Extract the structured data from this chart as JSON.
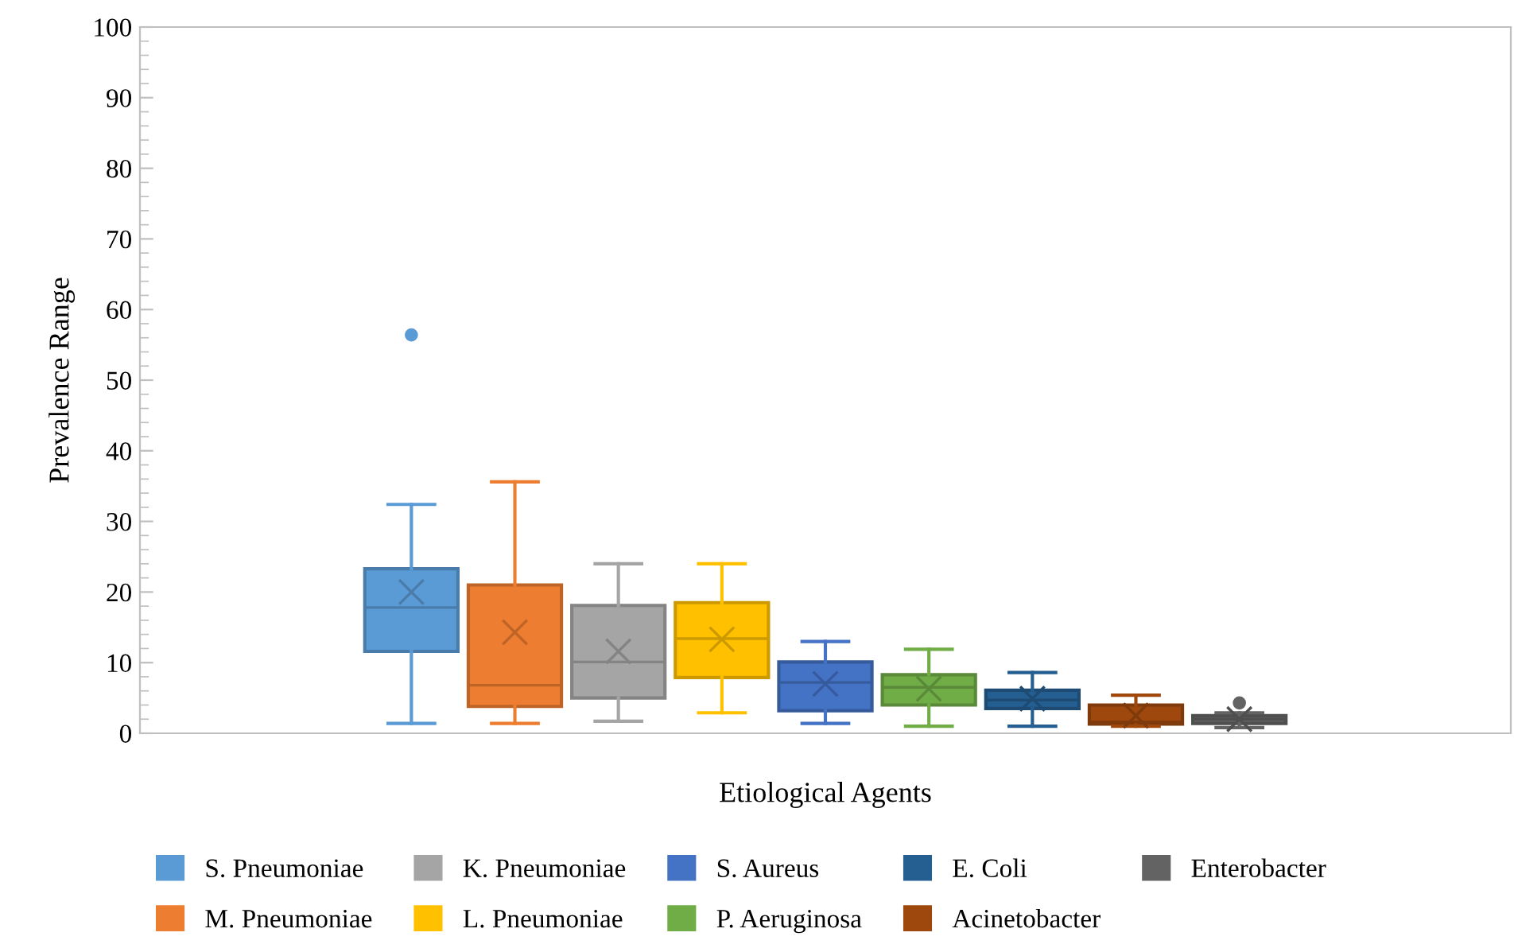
{
  "chart_data": {
    "type": "box",
    "xlabel": "Etiological Agents",
    "ylabel": "Prevalence Range",
    "categories": [
      null
    ],
    "ylim": [
      0,
      100
    ],
    "yticks": [
      0,
      10,
      20,
      30,
      40,
      50,
      60,
      70,
      80,
      90,
      100
    ],
    "tick_labels": "y",
    "grid": false,
    "legend": "bottom",
    "series": [
      {
        "name": "S. Pneumoniae",
        "color": "#5b9bd5",
        "boxes": [
          {
            "low": 1.4,
            "q1": 11.6,
            "median": 17.8,
            "q3": 23.3,
            "high": 32.4,
            "mean": 20.0,
            "outliers": [
              56.4
            ]
          }
        ]
      },
      {
        "name": "M. Pneumoniae",
        "color": "#ed7d31",
        "boxes": [
          {
            "low": 1.4,
            "q1": 3.8,
            "median": 6.8,
            "q3": 21.0,
            "high": 35.6,
            "mean": 14.3
          }
        ]
      },
      {
        "name": "K. Pneumoniae",
        "color": "#a5a5a5",
        "boxes": [
          {
            "low": 1.7,
            "q1": 5.0,
            "median": 10.1,
            "q3": 18.1,
            "high": 24.0,
            "mean": 11.6
          }
        ]
      },
      {
        "name": "L. Pneumoniae",
        "color": "#ffc000",
        "boxes": [
          {
            "low": 2.9,
            "q1": 7.9,
            "median": 13.4,
            "q3": 18.5,
            "high": 24.0,
            "mean": 13.3
          }
        ]
      },
      {
        "name": "S. Aureus",
        "color": "#4472c4",
        "boxes": [
          {
            "low": 1.4,
            "q1": 3.2,
            "median": 7.2,
            "q3": 10.1,
            "high": 13.0,
            "mean": 7.0
          }
        ]
      },
      {
        "name": "P. Aeruginosa",
        "color": "#70ad47",
        "boxes": [
          {
            "low": 1.0,
            "q1": 4.0,
            "median": 6.5,
            "q3": 8.3,
            "high": 11.9,
            "mean": 6.3
          }
        ]
      },
      {
        "name": "E. Coli",
        "color": "#255e91",
        "boxes": [
          {
            "low": 1.0,
            "q1": 3.5,
            "median": 4.7,
            "q3": 6.1,
            "high": 8.6,
            "mean": 4.9
          }
        ]
      },
      {
        "name": "Acinetobacter",
        "color": "#9e480e",
        "boxes": [
          {
            "low": 1.0,
            "q1": 1.3,
            "median": 1.6,
            "q3": 4.0,
            "high": 5.4,
            "mean": 2.5
          }
        ]
      },
      {
        "name": "Enterobacter",
        "color": "#636363",
        "boxes": [
          {
            "low": 0.8,
            "q1": 1.4,
            "median": 2.0,
            "q3": 2.5,
            "high": 2.9,
            "mean": 2.0,
            "outliers": [
              4.3
            ]
          }
        ]
      }
    ]
  }
}
